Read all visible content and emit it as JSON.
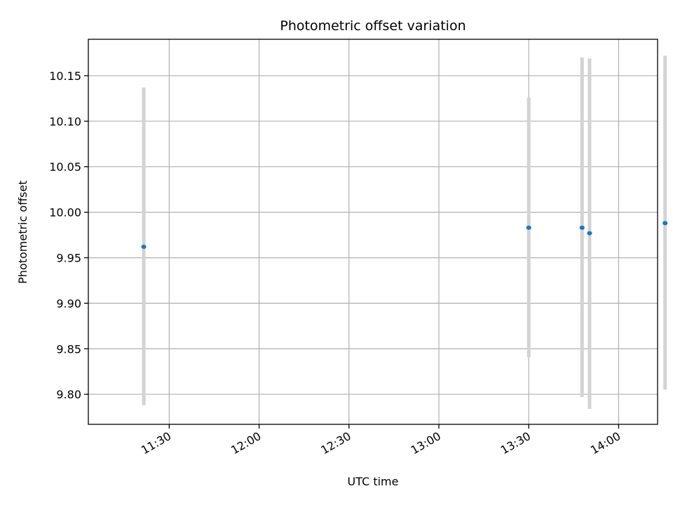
{
  "chart_data": {
    "type": "scatter",
    "title": "Photometric offset variation",
    "xlabel": "UTC time",
    "ylabel": "Photometric offset",
    "x_range_minutes": [
      663,
      853
    ],
    "ylim": [
      9.767,
      10.19
    ],
    "x_ticks": [
      {
        "minutes": 690,
        "label": "11:30"
      },
      {
        "minutes": 720,
        "label": "12:00"
      },
      {
        "minutes": 750,
        "label": "12:30"
      },
      {
        "minutes": 780,
        "label": "13:00"
      },
      {
        "minutes": 810,
        "label": "13:30"
      },
      {
        "minutes": 840,
        "label": "14:00"
      }
    ],
    "y_ticks": [
      {
        "value": 9.8,
        "label": "9.80"
      },
      {
        "value": 9.85,
        "label": "9.85"
      },
      {
        "value": 9.9,
        "label": "9.90"
      },
      {
        "value": 9.95,
        "label": "9.95"
      },
      {
        "value": 10.0,
        "label": "10.00"
      },
      {
        "value": 10.05,
        "label": "10.05"
      },
      {
        "value": 10.1,
        "label": "10.10"
      },
      {
        "value": 10.15,
        "label": "10.15"
      }
    ],
    "grid": true,
    "points": [
      {
        "time": "11:21.5",
        "minutes": 681.5,
        "y": 9.962,
        "err_low": 9.788,
        "err_high": 10.137
      },
      {
        "time": "13:30.0",
        "minutes": 810.0,
        "y": 9.983,
        "err_low": 9.841,
        "err_high": 10.126
      },
      {
        "time": "13:47.8",
        "minutes": 827.8,
        "y": 9.983,
        "err_low": 9.797,
        "err_high": 10.17
      },
      {
        "time": "13:50.3",
        "minutes": 830.3,
        "y": 9.977,
        "err_low": 9.784,
        "err_high": 10.169
      },
      {
        "time": "14:15.5",
        "minutes": 855.5,
        "y": 9.988,
        "err_low": 9.805,
        "err_high": 10.172
      }
    ],
    "colors": {
      "marker": "#1f77b4",
      "errorbar": "#d3d3d3",
      "grid": "#b0b0b0"
    }
  }
}
